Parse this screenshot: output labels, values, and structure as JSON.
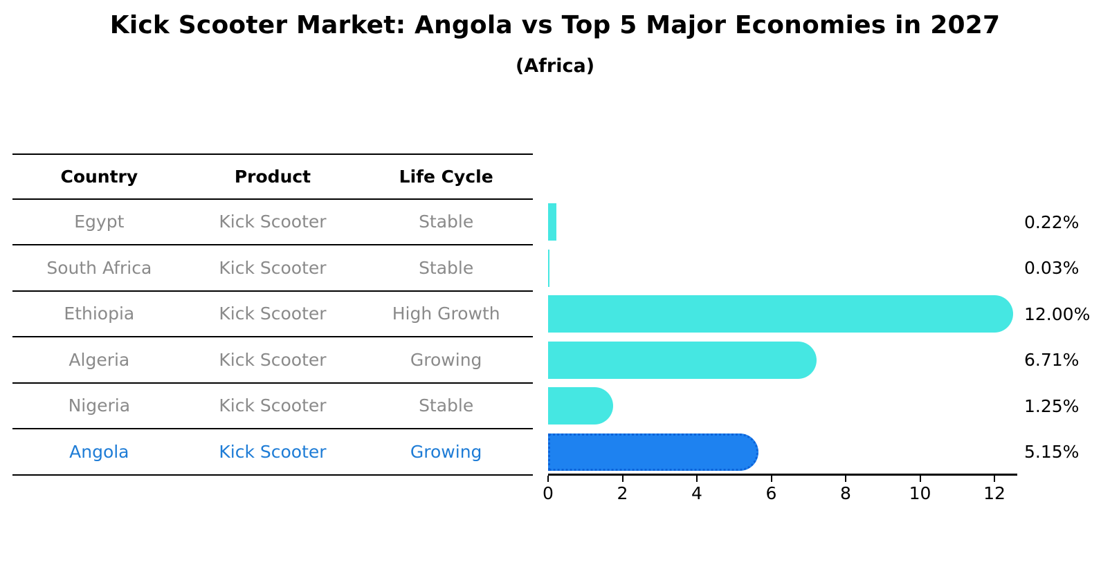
{
  "title": "Kick Scooter Market: Angola vs Top 5 Major Economies in 2027",
  "subtitle": "(Africa)",
  "table": {
    "headers": [
      "Country",
      "Product",
      "Life Cycle"
    ],
    "rows": [
      {
        "country": "Egypt",
        "product": "Kick Scooter",
        "life_cycle": "Stable",
        "highlight": false
      },
      {
        "country": "South Africa",
        "product": "Kick Scooter",
        "life_cycle": "Stable",
        "highlight": false
      },
      {
        "country": "Ethiopia",
        "product": "Kick Scooter",
        "life_cycle": "High Growth",
        "highlight": false
      },
      {
        "country": "Algeria",
        "product": "Kick Scooter",
        "life_cycle": "Growing",
        "highlight": false
      },
      {
        "country": "Nigeria",
        "product": "Kick Scooter",
        "life_cycle": "Stable",
        "highlight": false
      },
      {
        "country": "Angola",
        "product": "Kick Scooter",
        "life_cycle": "Growing",
        "highlight": true
      }
    ]
  },
  "chart_data": {
    "type": "bar",
    "orientation": "horizontal",
    "title": "Kick Scooter Market: Angola vs Top 5 Major Economies in 2027",
    "subtitle": "(Africa)",
    "categories": [
      "Egypt",
      "South Africa",
      "Ethiopia",
      "Algeria",
      "Nigeria",
      "Angola"
    ],
    "values": [
      0.22,
      0.03,
      12.0,
      6.71,
      1.25,
      5.15
    ],
    "value_labels": [
      "0.22%",
      "0.03%",
      "12.00%",
      "6.71%",
      "1.25%",
      "5.15%"
    ],
    "unit": "percent",
    "x_ticks": [
      0,
      2,
      4,
      6,
      8,
      10,
      12
    ],
    "xlim": [
      0,
      12.6
    ],
    "grid": false,
    "legend": "none",
    "highlight_index": 5,
    "colors": {
      "bar": "#45e7e2",
      "highlight_bar": "#1e82f0",
      "highlight_border": "#0c62d8",
      "highlight_text": "#1e7cd6",
      "row_text": "#8a8a8a",
      "axis": "#000000"
    }
  }
}
